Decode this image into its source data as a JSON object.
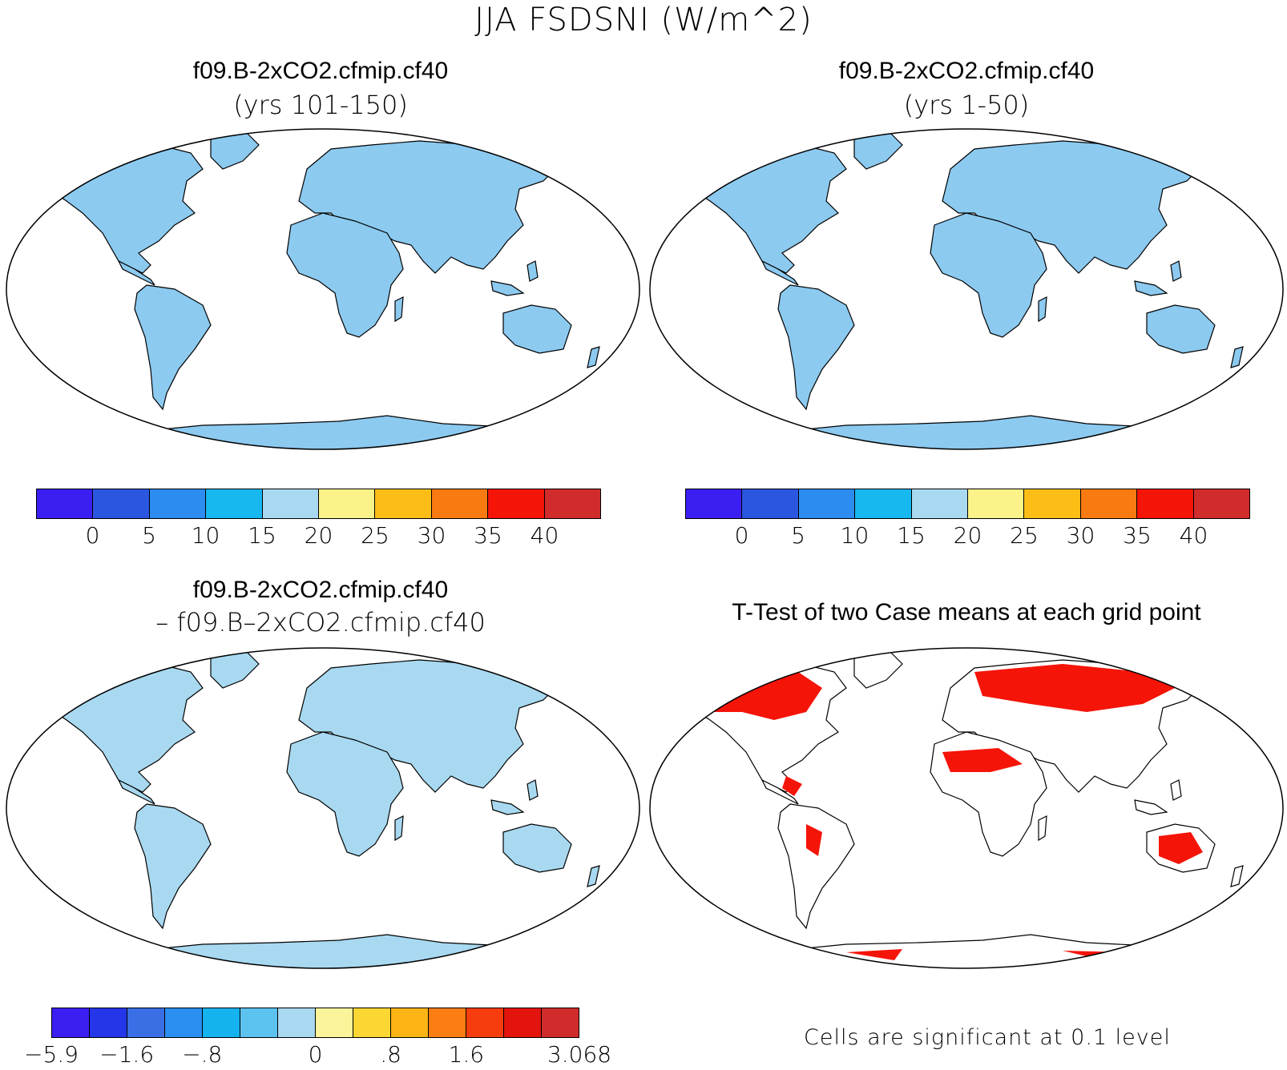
{
  "figure": {
    "title": "JJA FSDSNI (W/m^2)"
  },
  "panels": {
    "top_left": {
      "title": "f09.B-2xCO2.cfmip.cf40",
      "subtitle": "(yrs 101-150)"
    },
    "top_right": {
      "title": "f09.B-2xCO2.cfmip.cf40",
      "subtitle": "(yrs 1-50)"
    },
    "bottom_left": {
      "title": "f09.B-2xCO2.cfmip.cf40",
      "subtitle": "– f09.B–2xCO2.cfmip.cf40"
    },
    "bottom_right": {
      "title": "T-Test of two Case means at each grid point",
      "note": "Cells are significant at 0.1 level"
    }
  },
  "colorbars": {
    "absolute": {
      "colors": [
        "#3b1ff2",
        "#2a56e0",
        "#2c8cef",
        "#17b7f0",
        "#a8d9f0",
        "#fbf28a",
        "#fcbe16",
        "#fa7a12",
        "#f51408",
        "#d12c2c"
      ],
      "labels": [
        "0",
        "5",
        "10",
        "15",
        "20",
        "25",
        "30",
        "35",
        "40"
      ]
    },
    "difference": {
      "colors": [
        "#3b1ff2",
        "#2436e8",
        "#3a6ee4",
        "#2a8ff0",
        "#14b3ef",
        "#5cc3f0",
        "#a8d9f0",
        "#fcf49a",
        "#fcd733",
        "#fdb515",
        "#fb7e14",
        "#f73d0d",
        "#e3140b",
        "#d12c2c"
      ],
      "labels": [
        "−5.9",
        "−1.6",
        "−.8",
        "0",
        ".8",
        "1.6",
        "3.068"
      ]
    }
  }
}
